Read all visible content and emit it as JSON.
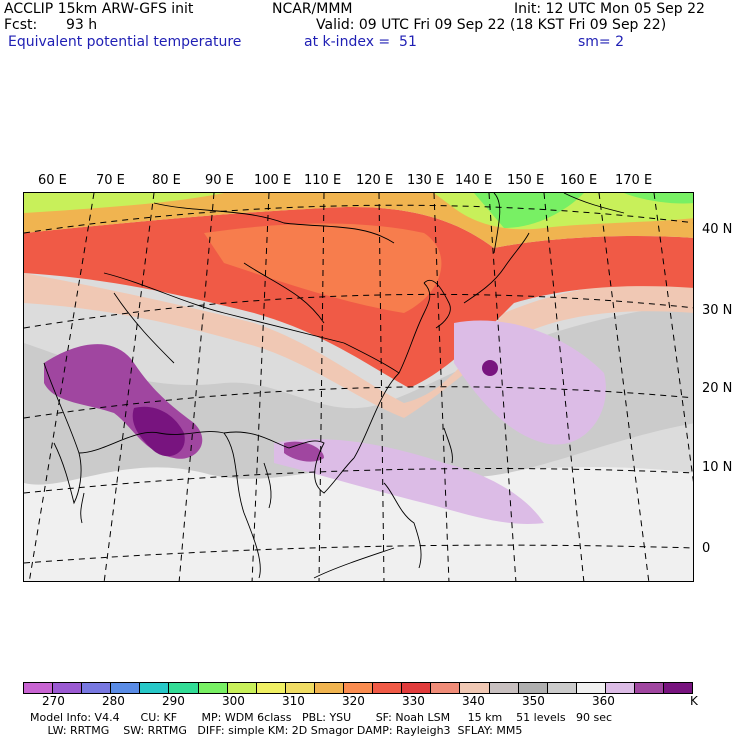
{
  "header": {
    "model": "ACCLIP 15km ARW-GFS init",
    "org": "NCAR/MMM",
    "init": "Init: 12 UTC Mon 05 Sep 22",
    "fcst_label": "Fcst:",
    "fcst_value": "93 h",
    "valid": "Valid: 09 UTC Fri 09 Sep 22 (18 KST Fri 09 Sep 22)",
    "field": "Equivalent potential temperature",
    "level": "at k-index =  51",
    "smoothing": "sm= 2"
  },
  "map": {
    "lon_labels": [
      "60 E",
      "70 E",
      "80 E",
      "90 E",
      "100 E",
      "110 E",
      "120 E",
      "130 E",
      "140 E",
      "150 E",
      "160 E",
      "170 E"
    ],
    "lat_labels": [
      "40 N",
      "30 N",
      "20 N",
      "10 N",
      "0"
    ]
  },
  "colorbar": {
    "colors": [
      "#c864d2",
      "#9b5ad2",
      "#7878e1",
      "#5a8ce6",
      "#28c8c8",
      "#32dc96",
      "#78f064",
      "#c8f05a",
      "#f0f064",
      "#f0dc64",
      "#f0b450",
      "#fa8c50",
      "#f05a46",
      "#e13c3c",
      "#f08c78",
      "#f0c8b4",
      "#c8c0c0",
      "#afafaf",
      "#cbcbcb",
      "#f0f0f0",
      "#dcbce6",
      "#a046a0",
      "#78147f"
    ],
    "labels": [
      "270",
      "280",
      "290",
      "300",
      "310",
      "320",
      "330",
      "340",
      "350",
      "360",
      "K"
    ]
  },
  "footer": {
    "line1": "Model Info: V4.4      CU: KF       MP: WDM 6class   PBL: YSU       SF: Noah LSM     15 km    51 levels   90 sec",
    "line2": "     LW: RRTMG    SW: RRTMG   DIFF: simple KM: 2D Smagor DAMP: Rayleigh3  SFLAY: MM5"
  }
}
